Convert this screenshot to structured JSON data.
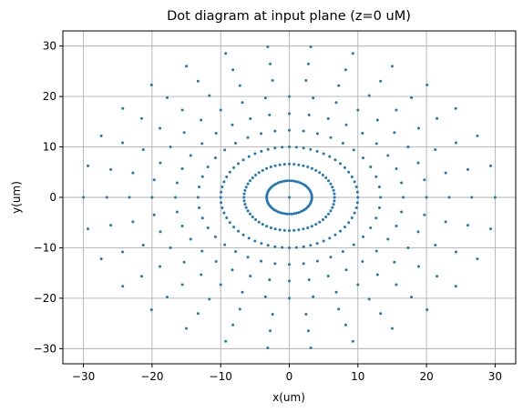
{
  "chart_data": {
    "type": "scatter",
    "title": "Dot diagram at input plane (z=0 uM)",
    "xlabel": "x(um)",
    "ylabel": "y(um)",
    "xlim": [
      -33,
      33
    ],
    "ylim": [
      -33,
      33
    ],
    "xticks": [
      -30,
      -20,
      -10,
      0,
      10,
      20,
      30
    ],
    "yticks": [
      -30,
      -20,
      -10,
      0,
      10,
      20,
      30
    ],
    "xtick_labels": [
      "−30",
      "−20",
      "−10",
      "0",
      "10",
      "20",
      "30"
    ],
    "ytick_labels": [
      "−30",
      "−20",
      "−10",
      "0",
      "10",
      "20",
      "30"
    ],
    "grid": true,
    "marker_color": "#1f77b4",
    "series": [
      {
        "name": "",
        "pattern": "concentric rings of points centered at origin",
        "rings": [
          {
            "radius": 0,
            "points": 1
          },
          {
            "radius": 3.3,
            "points": 60
          },
          {
            "radius": 6.6,
            "points": 60
          },
          {
            "radius": 10,
            "points": 60
          },
          {
            "radius": 13.3,
            "points": 40
          },
          {
            "radius": 16.6,
            "points": 36
          },
          {
            "radius": 20,
            "points": 36
          },
          {
            "radius": 23.3,
            "points": 30
          },
          {
            "radius": 26.6,
            "points": 30
          },
          {
            "radius": 30,
            "points": 30
          }
        ]
      }
    ]
  }
}
